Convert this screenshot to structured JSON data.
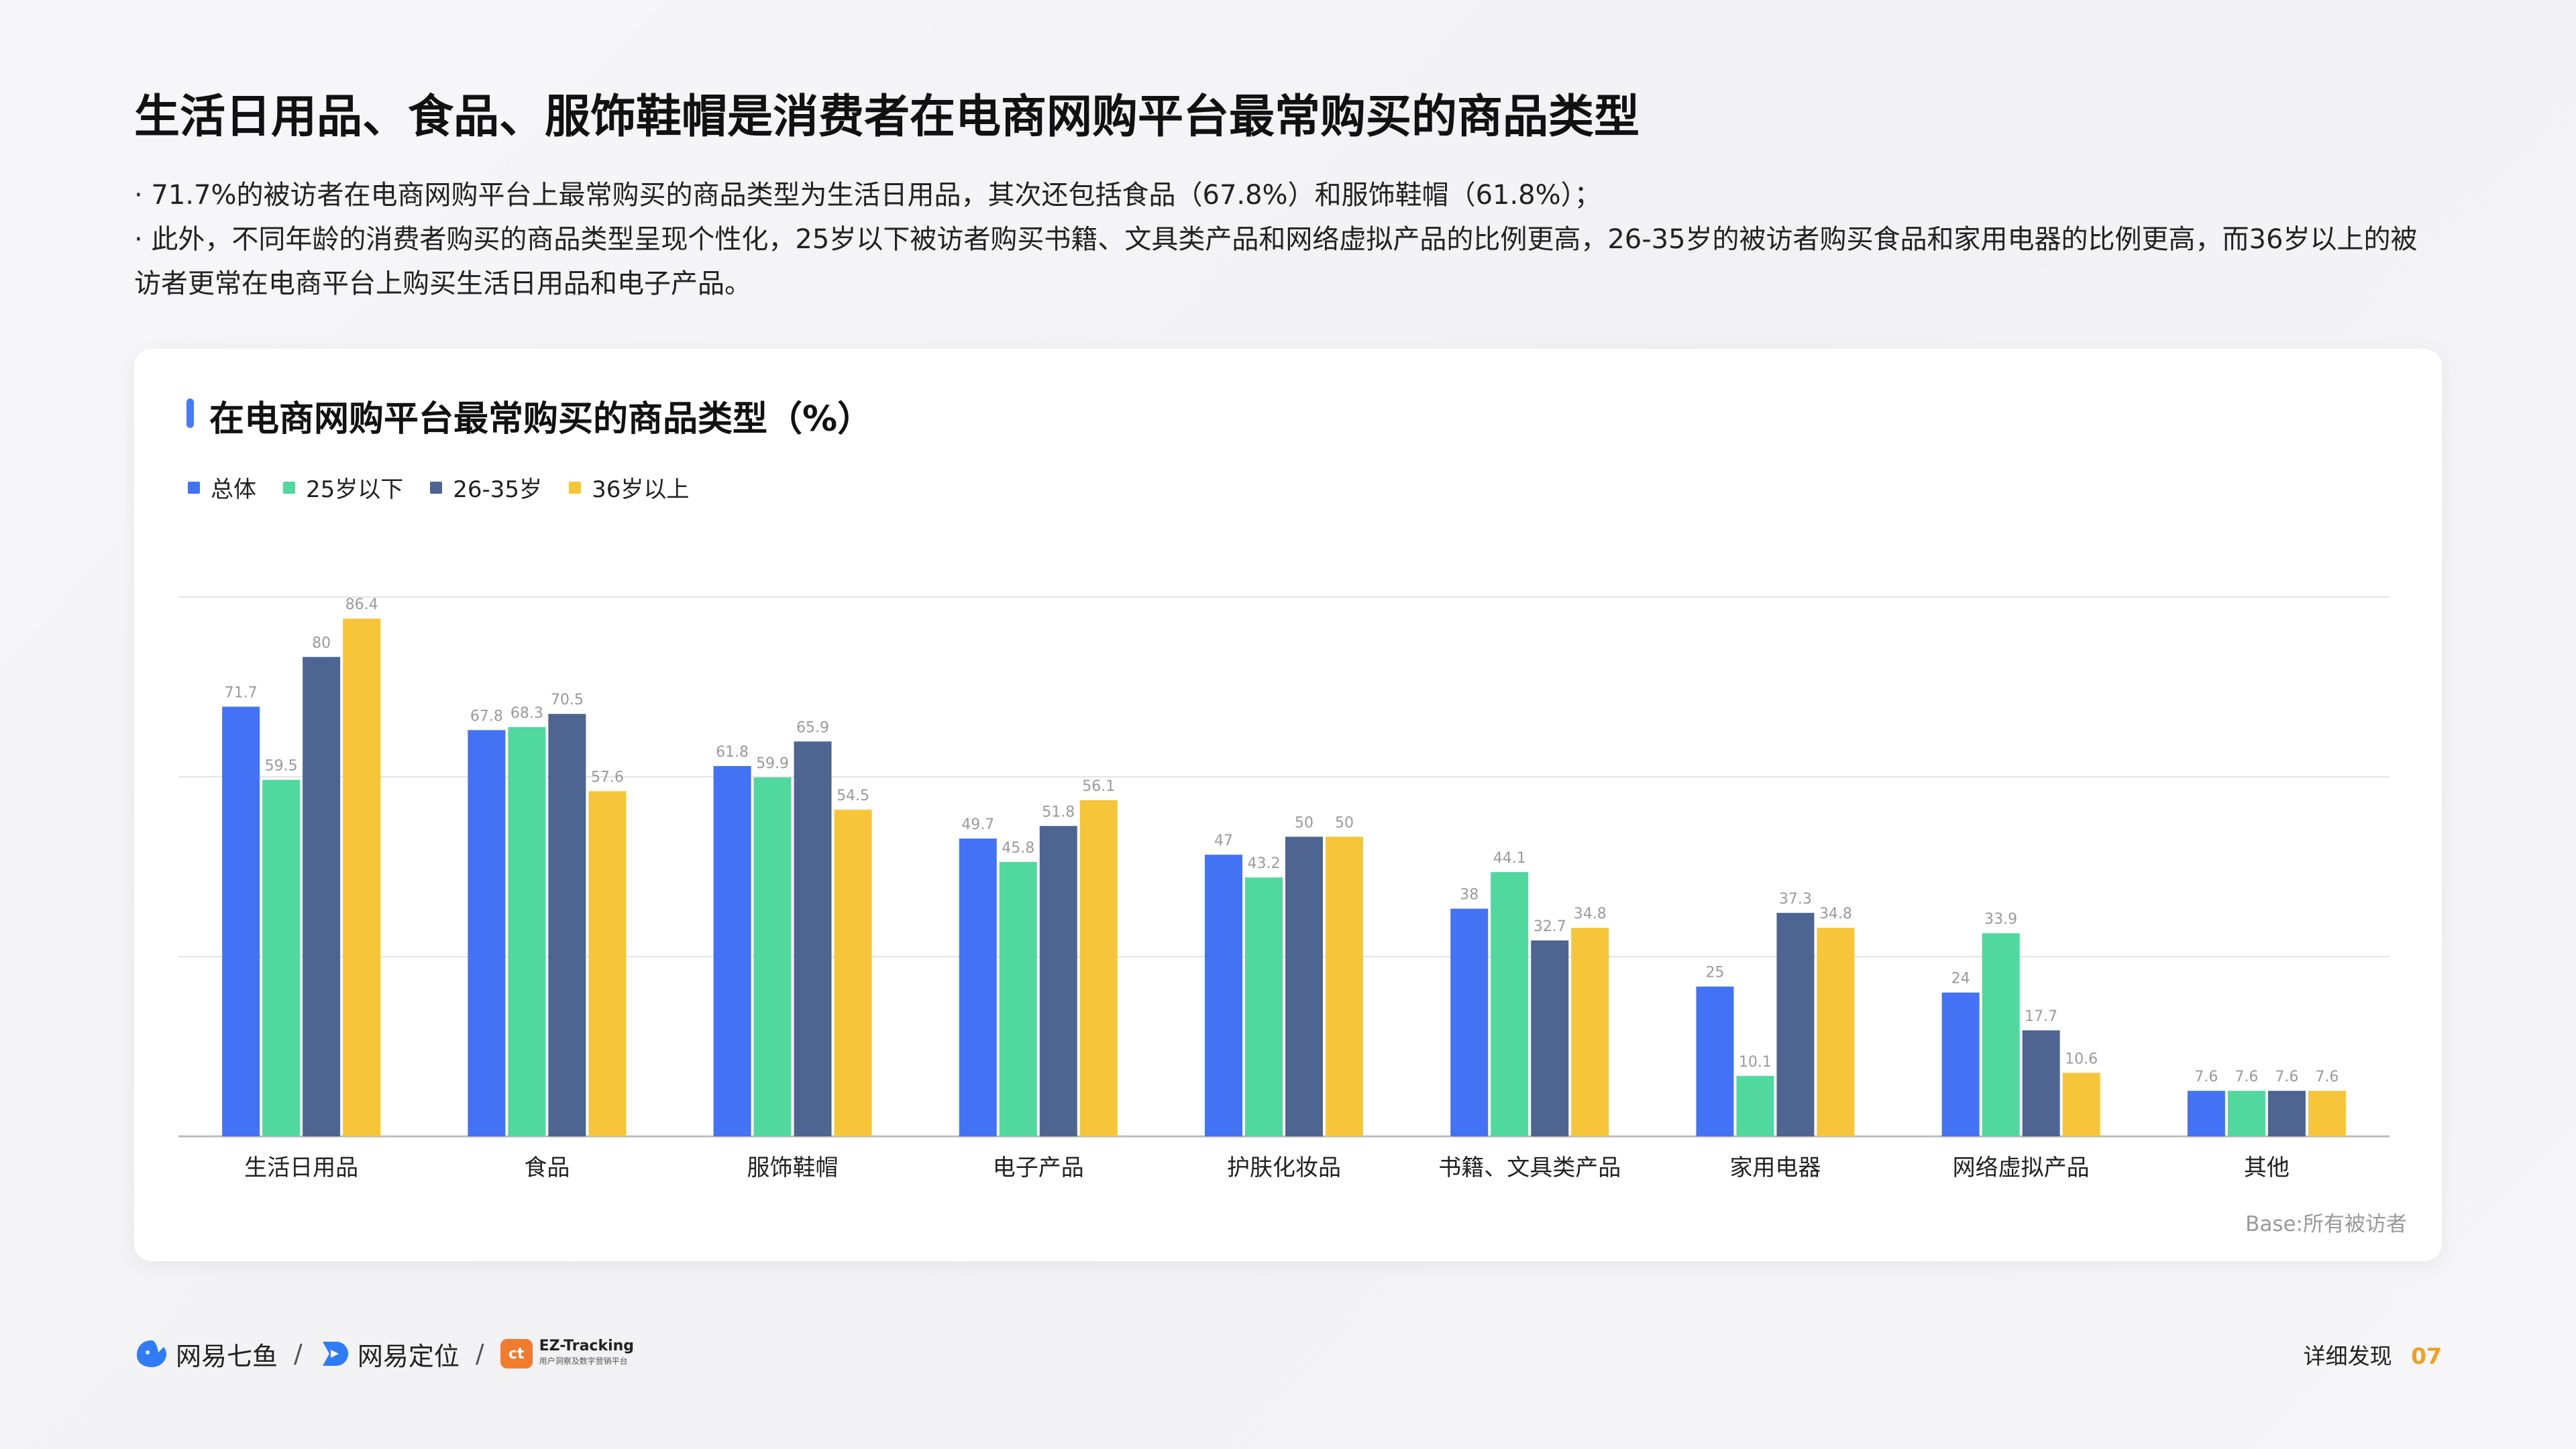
{
  "page": {
    "title": "生活日用品、食品、服饰鞋帽是消费者在电商网购平台最常购买的商品类型",
    "bullets": [
      "· 71.7%的被访者在电商网购平台上最常购买的商品类型为生活日用品，其次还包括食品（67.8%）和服饰鞋帽（61.8%）；",
      "· 此外，不同年龄的消费者购买的商品类型呈现个性化，25岁以下被访者购买书籍、文具类产品和网络虚拟产品的比例更高，26-35岁的被访者购买食品和家用电器的比例更高，而36岁以上的被访者更常在电商平台上购买生活日用品和电子产品。"
    ],
    "base_note": "Base:所有被访者"
  },
  "chart_data": {
    "type": "bar",
    "title": "在电商网购平台最常购买的商品类型（%）",
    "categories": [
      "生活日用品",
      "食品",
      "服饰鞋帽",
      "电子产品",
      "护肤化妆品",
      "书籍、文具类产品",
      "家用电器",
      "网络虚拟产品",
      "其他"
    ],
    "series": [
      {
        "name": "总体",
        "color": "#4472f5",
        "values": [
          71.7,
          67.8,
          61.8,
          49.7,
          47,
          38,
          25,
          24,
          7.6
        ]
      },
      {
        "name": "25岁以下",
        "color": "#50d89e",
        "values": [
          59.5,
          68.3,
          59.9,
          45.8,
          43.2,
          44.1,
          10.1,
          33.9,
          7.6
        ]
      },
      {
        "name": "26-35岁",
        "color": "#4e6591",
        "values": [
          80,
          70.5,
          65.9,
          51.8,
          50,
          32.7,
          37.3,
          17.7,
          7.6
        ]
      },
      {
        "name": "36岁以上",
        "color": "#f7c53a",
        "values": [
          86.4,
          57.6,
          54.5,
          56.1,
          50,
          34.8,
          34.8,
          10.6,
          7.6
        ]
      }
    ],
    "ylim": [
      0,
      90
    ],
    "gridlines": [
      30,
      60,
      90
    ],
    "legend_position": "top-left",
    "data_labels": true
  },
  "footer": {
    "brand1": "网易七鱼",
    "brand2": "网易定位",
    "brand3_mark": "ct",
    "brand3_name": "EZ-Tracking",
    "brand3_sub": "用户洞察及数字营销平台",
    "section": "详细发现",
    "page_number": "07"
  }
}
